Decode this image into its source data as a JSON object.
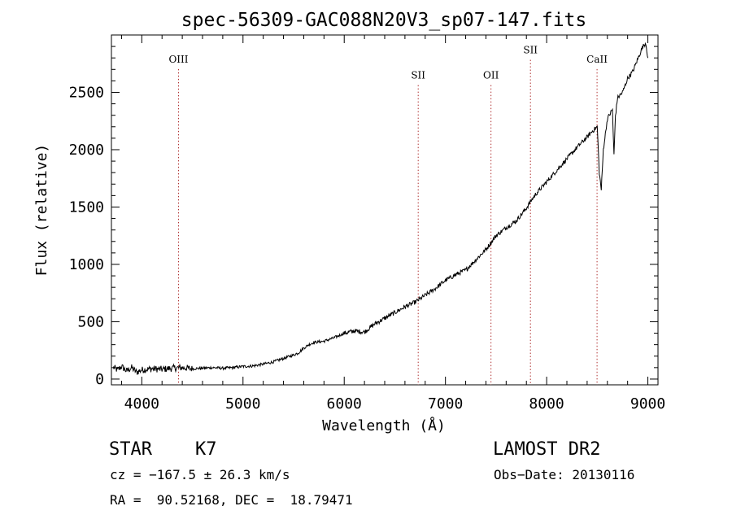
{
  "chart_data": {
    "type": "line",
    "title": "spec-56309-GAC088N20V3_sp07-147.fits",
    "xlabel": "Wavelength (Å)",
    "ylabel": "Flux (relative)",
    "xlim": [
      3700,
      9100
    ],
    "ylim": [
      -50,
      3000
    ],
    "x_ticks": [
      4000,
      5000,
      6000,
      7000,
      8000,
      9000
    ],
    "y_ticks": [
      0,
      500,
      1000,
      1500,
      2000,
      2500
    ],
    "grid": false,
    "series": [
      {
        "x": [
          3720,
          3760,
          3800,
          3850,
          3900,
          3950,
          4000,
          4100,
          4200,
          4300,
          4400,
          4500,
          4600,
          4700,
          4800,
          4900,
          5000,
          5100,
          5200,
          5300,
          5400,
          5500,
          5550,
          5600,
          5650,
          5700,
          5800,
          5900,
          6000,
          6100,
          6200,
          6300,
          6400,
          6500,
          6600,
          6700,
          6800,
          6900,
          7000,
          7100,
          7200,
          7300,
          7400,
          7450,
          7500,
          7600,
          7700,
          7800,
          7850,
          7900,
          8000,
          8100,
          8200,
          8300,
          8400,
          8450,
          8500,
          8520,
          8540,
          8560,
          8600,
          8650,
          8665,
          8680,
          8700,
          8750,
          8800,
          8850,
          8900,
          8950,
          8980,
          9000
        ],
        "y": [
          100,
          80,
          110,
          70,
          100,
          60,
          80,
          90,
          85,
          95,
          100,
          90,
          95,
          100,
          95,
          100,
          110,
          115,
          130,
          150,
          180,
          210,
          230,
          270,
          300,
          320,
          330,
          360,
          400,
          420,
          410,
          480,
          530,
          580,
          630,
          670,
          730,
          790,
          860,
          910,
          950,
          1040,
          1130,
          1190,
          1250,
          1320,
          1380,
          1490,
          1560,
          1620,
          1720,
          1820,
          1920,
          2020,
          2110,
          2160,
          2200,
          1800,
          1650,
          2000,
          2270,
          2350,
          1950,
          2300,
          2450,
          2500,
          2620,
          2680,
          2790,
          2900,
          2930,
          2800
        ]
      }
    ],
    "lines": [
      {
        "label": "OIII",
        "x": 4363,
        "label_y": 2760
      },
      {
        "label": "SII",
        "x": 6731,
        "label_y": 2620
      },
      {
        "label": "OII",
        "x": 7450,
        "label_y": 2620
      },
      {
        "label": "SII",
        "x": 7840,
        "label_y": 2840
      },
      {
        "label": "CaII",
        "x": 8498,
        "label_y": 2760
      }
    ]
  },
  "info": {
    "object_class": "STAR",
    "subclass": "K7",
    "survey": "LAMOST DR2",
    "cz": "cz = −167.5 ± 26.3 km/s",
    "obs_date": "Obs−Date: 20130116",
    "radec": "RA =  90.52168, DEC =  18.79471"
  }
}
